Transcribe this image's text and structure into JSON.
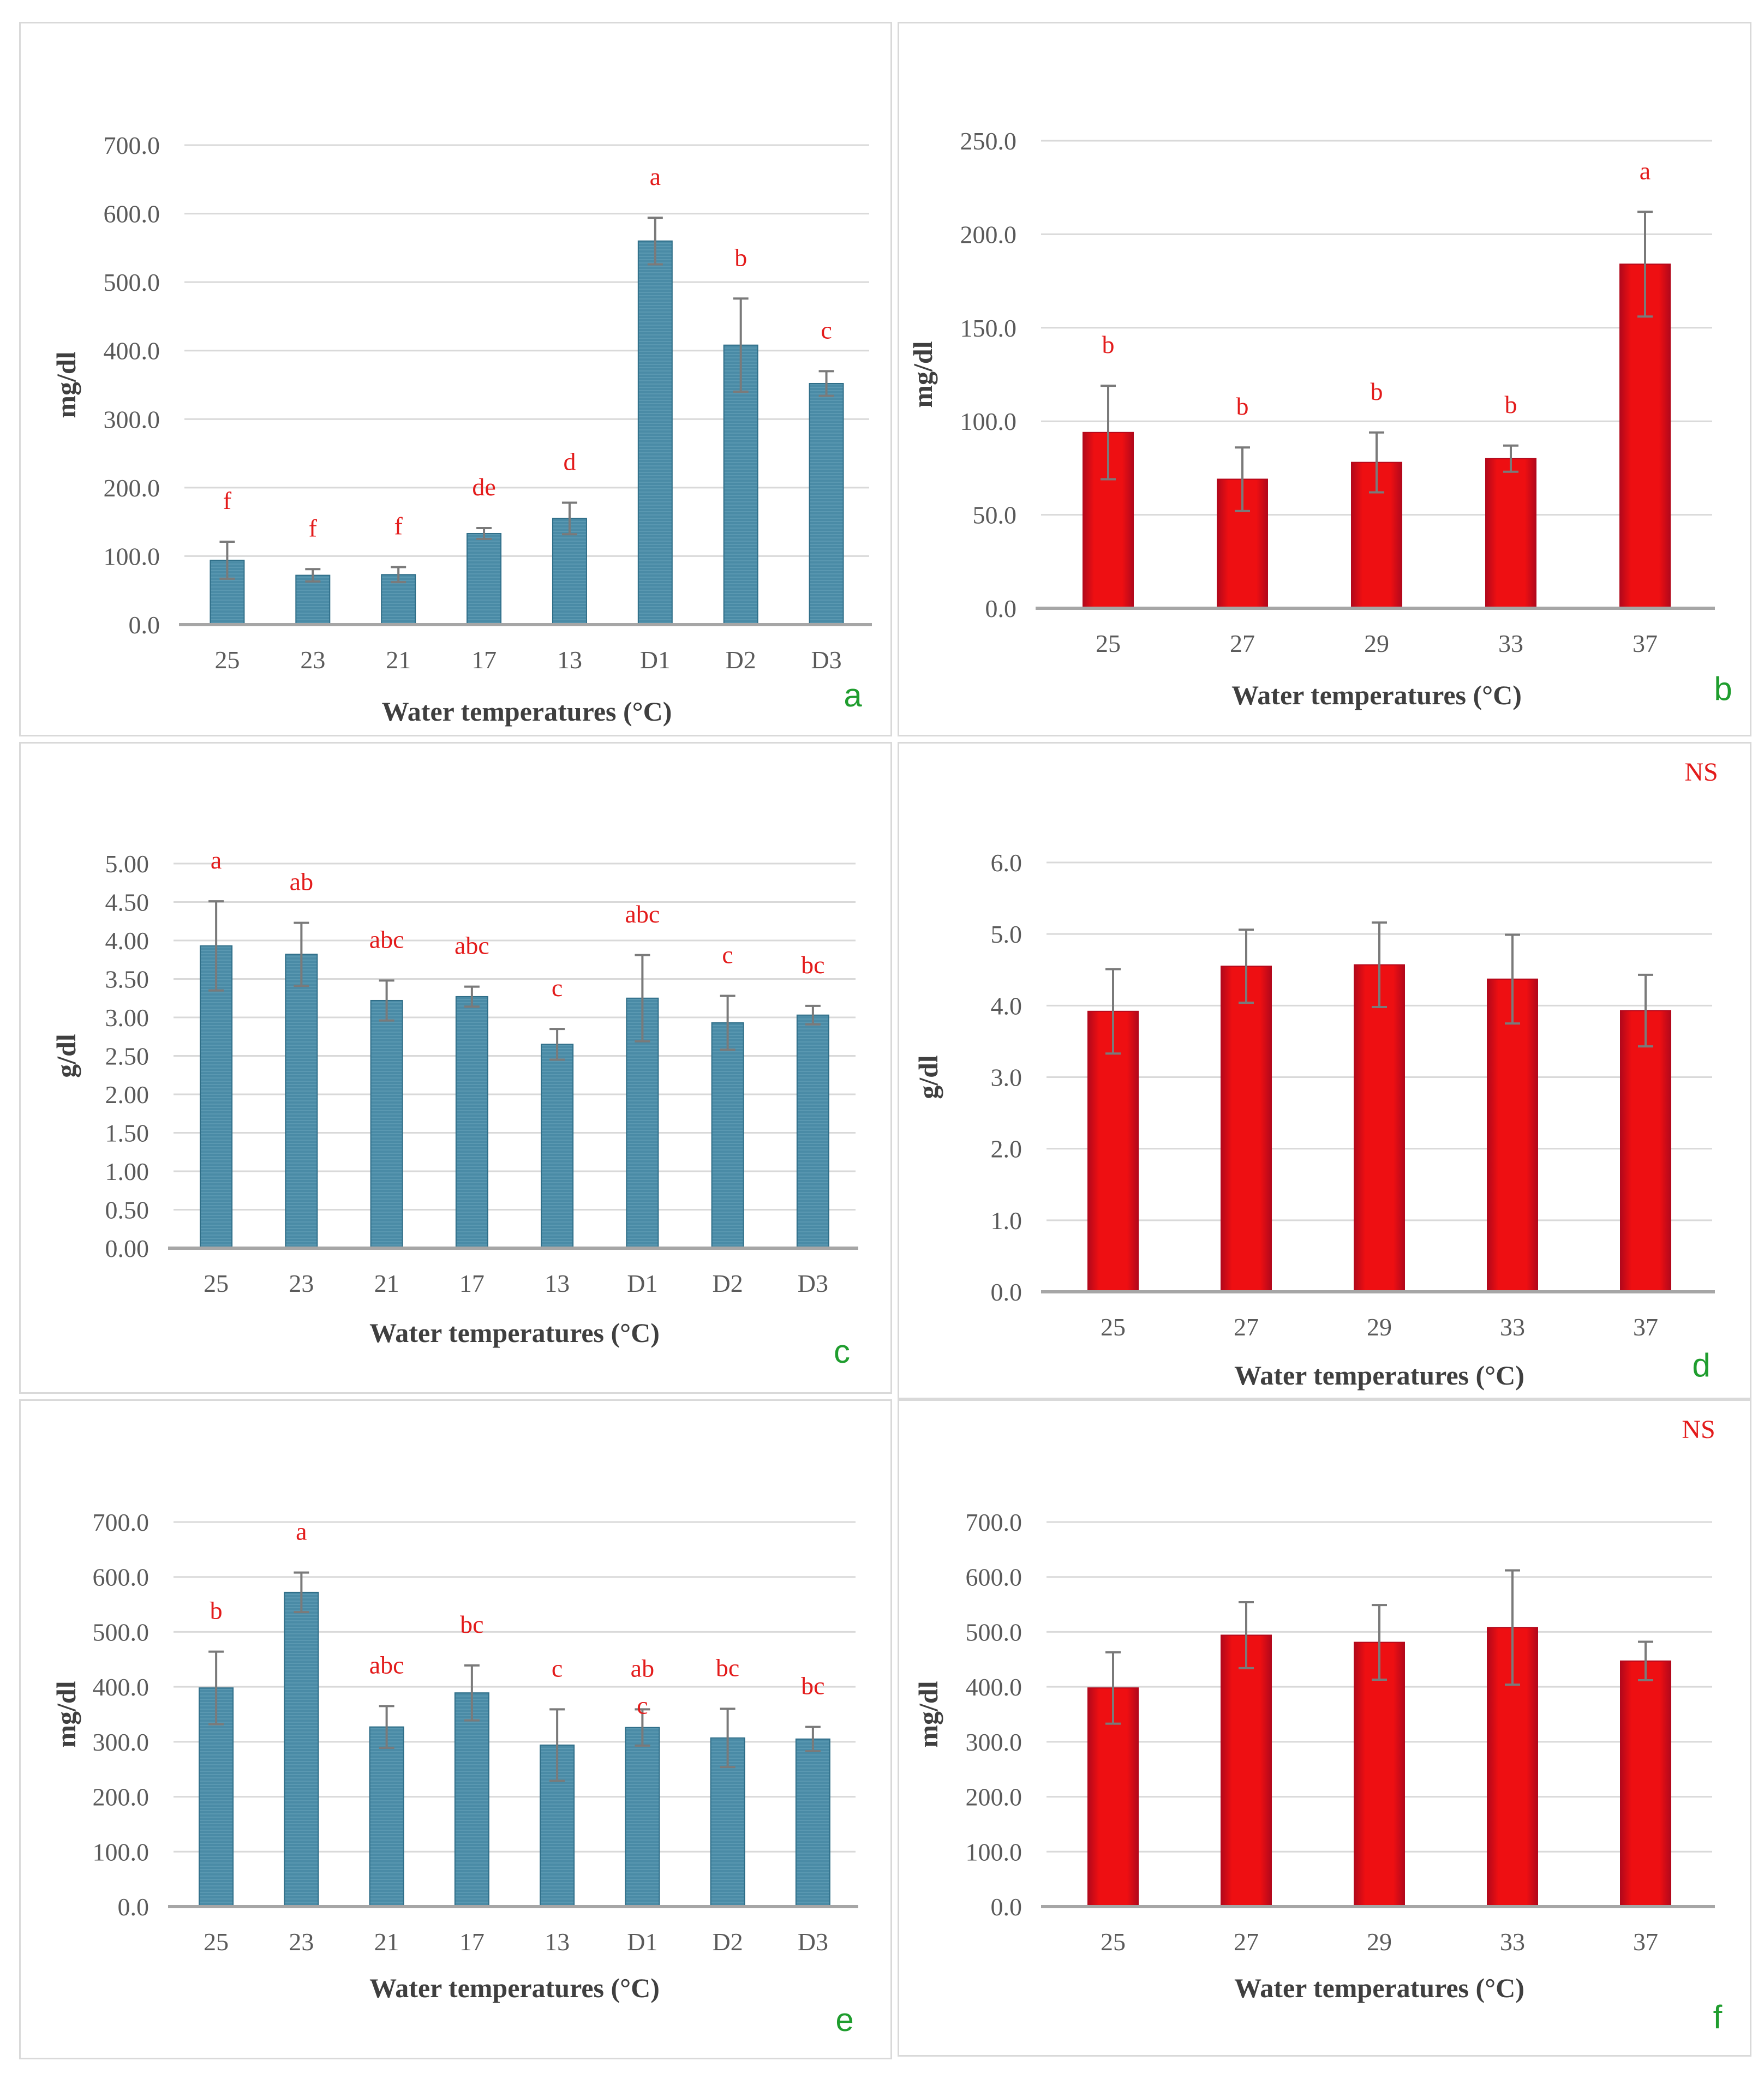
{
  "colors": {
    "blue_series": "#4a8ba6",
    "blue_series_dark": "#2f6e88",
    "red_series": "#ee0f12",
    "red_series_dark": "#b3081b",
    "significance_text": "#e31b1b",
    "panel_letter": "#1f9d2e"
  },
  "chart_data": [
    {
      "panel": "a",
      "type": "bar",
      "color_scheme": "blue",
      "categories": [
        "25",
        "23",
        "21",
        "17",
        "13",
        "D1",
        "D2",
        "D3"
      ],
      "values": [
        94,
        72,
        73,
        133,
        155,
        560,
        408,
        352
      ],
      "errors": [
        27,
        9,
        11,
        8,
        23,
        34,
        68,
        18
      ],
      "significance": [
        "f",
        "f",
        "f",
        "de",
        "d",
        "a",
        "b",
        "c"
      ],
      "ylabel": "mg/dl",
      "xlabel": "Water temperatures (°C)",
      "ylim": [
        0,
        700
      ],
      "yticks": [
        "0.0",
        "100.0",
        "200.0",
        "300.0",
        "400.0",
        "500.0",
        "600.0",
        "700.0"
      ],
      "note": ""
    },
    {
      "panel": "b",
      "type": "bar",
      "color_scheme": "red",
      "categories": [
        "25",
        "27",
        "29",
        "33",
        "37"
      ],
      "values": [
        94,
        69,
        78,
        80,
        184
      ],
      "errors": [
        25,
        17,
        16,
        7,
        28
      ],
      "significance": [
        "b",
        "b",
        "b",
        "b",
        "a"
      ],
      "ylabel": "mg/dl",
      "xlabel": "Water temperatures (°C)",
      "ylim": [
        0,
        250
      ],
      "yticks": [
        "0.0",
        "50.0",
        "100.0",
        "150.0",
        "200.0",
        "250.0"
      ],
      "note": ""
    },
    {
      "panel": "c",
      "type": "bar",
      "color_scheme": "blue",
      "categories": [
        "25",
        "23",
        "21",
        "17",
        "13",
        "D1",
        "D2",
        "D3"
      ],
      "values": [
        3.93,
        3.82,
        3.22,
        3.27,
        2.65,
        3.25,
        2.93,
        3.03
      ],
      "errors": [
        0.58,
        0.41,
        0.26,
        0.13,
        0.2,
        0.56,
        0.35,
        0.12
      ],
      "significance": [
        "a",
        "ab",
        "abc",
        "abc",
        "c",
        "abc",
        "c",
        "bc"
      ],
      "ylabel": "g/dl",
      "xlabel": "Water temperatures (°C)",
      "ylim": [
        0,
        5
      ],
      "yticks": [
        "0.00",
        "0.50",
        "1.00",
        "1.50",
        "2.00",
        "2.50",
        "3.00",
        "3.50",
        "4.00",
        "4.50",
        "5.00"
      ],
      "note": ""
    },
    {
      "panel": "d",
      "type": "bar",
      "color_scheme": "red",
      "categories": [
        "25",
        "27",
        "29",
        "33",
        "37"
      ],
      "values": [
        3.92,
        4.55,
        4.57,
        4.37,
        3.93
      ],
      "errors": [
        0.59,
        0.51,
        0.59,
        0.62,
        0.5
      ],
      "significance": [
        "",
        "",
        "",
        "",
        ""
      ],
      "ylabel": "g/dl",
      "xlabel": "Water temperatures (°C)",
      "ylim": [
        0,
        6
      ],
      "yticks": [
        "0.0",
        "1.0",
        "2.0",
        "3.0",
        "4.0",
        "5.0",
        "6.0"
      ],
      "note": "NS"
    },
    {
      "panel": "e",
      "type": "bar",
      "color_scheme": "blue",
      "categories": [
        "25",
        "23",
        "21",
        "17",
        "13",
        "D1",
        "D2",
        "D3"
      ],
      "values": [
        398,
        572,
        327,
        389,
        294,
        326,
        307,
        305
      ],
      "errors": [
        66,
        36,
        38,
        50,
        65,
        33,
        53,
        22
      ],
      "significance": [
        "b",
        "a",
        "abc",
        "bc",
        "c",
        "ab\nc",
        "bc",
        "bc"
      ],
      "ylabel": "mg/dl",
      "xlabel": "Water temperatures (°C)",
      "ylim": [
        0,
        700
      ],
      "yticks": [
        "0.0",
        "100.0",
        "200.0",
        "300.0",
        "400.0",
        "500.0",
        "600.0",
        "700.0"
      ],
      "note": ""
    },
    {
      "panel": "f",
      "type": "bar",
      "color_scheme": "red",
      "categories": [
        "25",
        "27",
        "29",
        "33",
        "37"
      ],
      "values": [
        398,
        494,
        481,
        508,
        447
      ],
      "errors": [
        65,
        60,
        68,
        104,
        35
      ],
      "significance": [
        "",
        "",
        "",
        "",
        ""
      ],
      "ylabel": "mg/dl",
      "xlabel": "Water temperatures (°C)",
      "ylim": [
        0,
        700
      ],
      "yticks": [
        "0.0",
        "100.0",
        "200.0",
        "300.0",
        "400.0",
        "500.0",
        "600.0",
        "700.0"
      ],
      "note": "NS"
    }
  ]
}
